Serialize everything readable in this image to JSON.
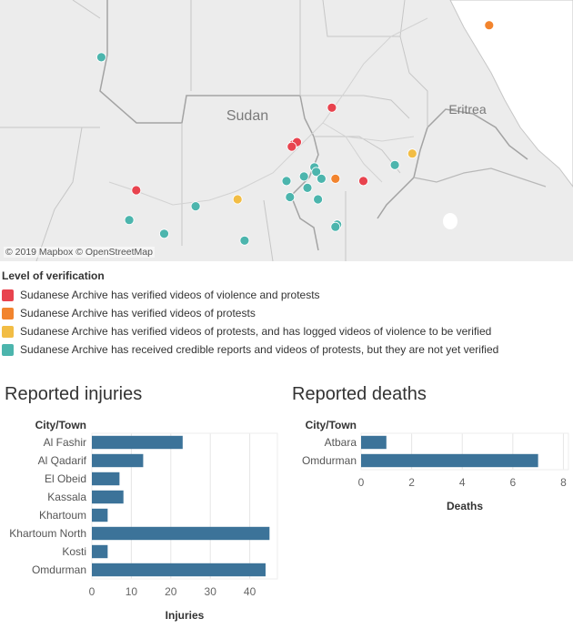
{
  "map": {
    "labels": {
      "country_main": "Sudan",
      "country_neighbor": "Eritrea"
    },
    "attribution": "© 2019 Mapbox © OpenStreetMap",
    "colors": {
      "land": "#ececec",
      "sea": "#ffffff",
      "border": "#c6c6c6",
      "road": "#bdbdbd",
      "country_border": "#a3a3a3",
      "violence": "#e8434e",
      "protests": "#f2842e",
      "protests_logged": "#f2bd45",
      "credible": "#4cb5ad"
    },
    "points": [
      {
        "category": "credible",
        "lat": 16.8,
        "lon": 25.5
      },
      {
        "category": "protests",
        "lat": 18.2,
        "lon": 36.6
      },
      {
        "category": "violence",
        "lat": 14.6,
        "lon": 32.1
      },
      {
        "category": "violence",
        "lat": 13.0,
        "lon": 31.0
      },
      {
        "category": "violence",
        "lat": 13.1,
        "lon": 31.1
      },
      {
        "category": "violence",
        "lat": 12.9,
        "lon": 30.95
      },
      {
        "category": "protests_logged",
        "lat": 12.6,
        "lon": 34.4
      },
      {
        "category": "credible",
        "lat": 12.1,
        "lon": 33.9
      },
      {
        "category": "credible",
        "lat": 12.0,
        "lon": 31.6
      },
      {
        "category": "credible",
        "lat": 11.8,
        "lon": 31.65
      },
      {
        "category": "credible",
        "lat": 11.6,
        "lon": 31.3
      },
      {
        "category": "credible",
        "lat": 11.5,
        "lon": 31.8
      },
      {
        "category": "credible",
        "lat": 11.4,
        "lon": 30.8
      },
      {
        "category": "protests",
        "lat": 11.5,
        "lon": 32.2
      },
      {
        "category": "violence",
        "lat": 11.4,
        "lon": 33.0
      },
      {
        "category": "credible",
        "lat": 11.1,
        "lon": 31.4
      },
      {
        "category": "violence",
        "lat": 11.0,
        "lon": 26.5
      },
      {
        "category": "protests_logged",
        "lat": 10.6,
        "lon": 29.4
      },
      {
        "category": "credible",
        "lat": 10.7,
        "lon": 30.9
      },
      {
        "category": "credible",
        "lat": 10.6,
        "lon": 31.7
      },
      {
        "category": "credible",
        "lat": 10.3,
        "lon": 28.2
      },
      {
        "category": "credible",
        "lat": 9.7,
        "lon": 26.3
      },
      {
        "category": "credible",
        "lat": 9.5,
        "lon": 32.25
      },
      {
        "category": "credible",
        "lat": 9.4,
        "lon": 32.2
      },
      {
        "category": "credible",
        "lat": 9.1,
        "lon": 27.3
      },
      {
        "category": "credible",
        "lat": 8.8,
        "lon": 29.6
      }
    ]
  },
  "legend": {
    "title": "Level of verification",
    "items": [
      {
        "label": "Sudanese Archive has verified videos of violence and protests",
        "color": "#e8434e"
      },
      {
        "label": "Sudanese Archive has verified videos of protests",
        "color": "#f2842e"
      },
      {
        "label": "Sudanese Archive has verified videos of protests, and has logged videos of violence to be verified",
        "color": "#f2bd45"
      },
      {
        "label": "Sudanese Archive has received credible reports and videos of protests, but they are not yet verified",
        "color": "#4cb5ad"
      }
    ]
  },
  "chart_data": [
    {
      "type": "bar",
      "orientation": "horizontal",
      "title": "Reported injuries",
      "category_header": "City/Town",
      "xlabel": "Injuries",
      "categories": [
        "Al Fashir",
        "Al Qadarif",
        "El Obeid",
        "Kassala",
        "Khartoum",
        "Khartoum North",
        "Kosti",
        "Omdurman"
      ],
      "values": [
        23,
        13,
        7,
        8,
        4,
        45,
        4,
        44
      ],
      "xlim": [
        0,
        47
      ],
      "ticks": [
        0,
        10,
        20,
        30,
        40
      ],
      "grid": true,
      "bar_color": "#3c7399"
    },
    {
      "type": "bar",
      "orientation": "horizontal",
      "title": "Reported deaths",
      "category_header": "City/Town",
      "xlabel": "Deaths",
      "categories": [
        "Atbara",
        "Omdurman"
      ],
      "values": [
        1,
        7
      ],
      "xlim": [
        0,
        8.2
      ],
      "ticks": [
        0,
        2,
        4,
        6,
        8
      ],
      "grid": true,
      "bar_color": "#3c7399"
    }
  ]
}
